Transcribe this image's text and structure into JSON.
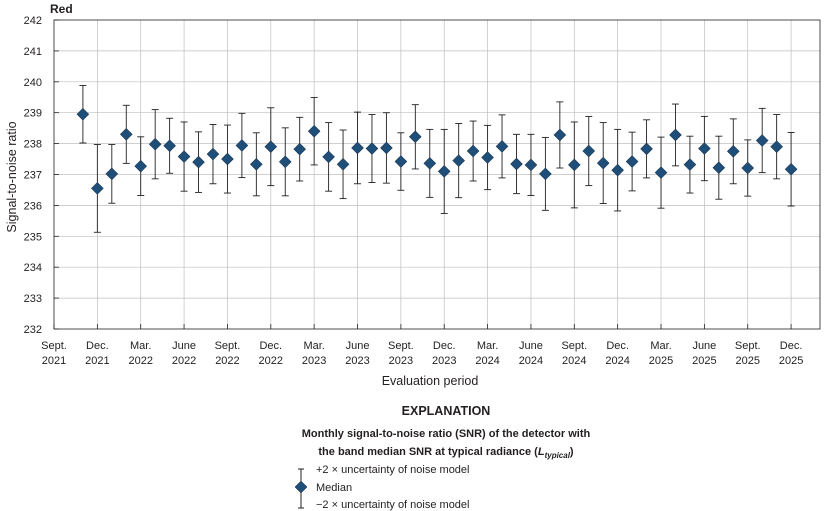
{
  "chart_data": {
    "type": "scatter",
    "panel_label": "Red",
    "xlabel": "Evaluation period",
    "ylabel": "Signal-to-noise ratio",
    "ylim": [
      232,
      242
    ],
    "yticks": [
      232,
      233,
      234,
      235,
      236,
      237,
      238,
      239,
      240,
      241,
      242
    ],
    "x_start": "2021-09",
    "x_end": "2026-02",
    "x_tick_months": [
      "2021-09",
      "2021-12",
      "2022-03",
      "2022-06",
      "2022-09",
      "2022-12",
      "2023-03",
      "2023-06",
      "2023-09",
      "2023-12",
      "2024-03",
      "2024-06",
      "2024-09",
      "2024-12",
      "2025-03",
      "2025-06",
      "2025-09",
      "2025-12"
    ],
    "x_tick_labels": [
      [
        "Sept.",
        "2021"
      ],
      [
        "Dec.",
        "2021"
      ],
      [
        "Mar.",
        "2022"
      ],
      [
        "June",
        "2022"
      ],
      [
        "Sept.",
        "2022"
      ],
      [
        "Dec.",
        "2022"
      ],
      [
        "Mar.",
        "2023"
      ],
      [
        "June",
        "2023"
      ],
      [
        "Sept.",
        "2023"
      ],
      [
        "Dec.",
        "2023"
      ],
      [
        "Mar.",
        "2024"
      ],
      [
        "June",
        "2024"
      ],
      [
        "Sept.",
        "2024"
      ],
      [
        "Dec.",
        "2024"
      ],
      [
        "Mar.",
        "2025"
      ],
      [
        "June",
        "2025"
      ],
      [
        "Sept.",
        "2025"
      ],
      [
        "Dec.",
        "2025"
      ]
    ],
    "grid": true,
    "marker_color": "#1f4e79",
    "series": [
      {
        "name": "Median",
        "points": [
          {
            "x": "2021-11-01",
            "y": 238.95,
            "upper": 239.88,
            "lower": 238.02
          },
          {
            "x": "2021-12-01",
            "y": 236.55,
            "upper": 237.97,
            "lower": 235.13
          },
          {
            "x": "2022-01-01",
            "y": 237.02,
            "upper": 237.97,
            "lower": 236.07
          },
          {
            "x": "2022-02-01",
            "y": 238.3,
            "upper": 239.24,
            "lower": 237.36
          },
          {
            "x": "2022-03-01",
            "y": 237.27,
            "upper": 238.22,
            "lower": 236.32
          },
          {
            "x": "2022-04-01",
            "y": 237.98,
            "upper": 239.1,
            "lower": 236.86
          },
          {
            "x": "2022-05-01",
            "y": 237.93,
            "upper": 238.82,
            "lower": 237.04
          },
          {
            "x": "2022-06-01",
            "y": 237.58,
            "upper": 238.7,
            "lower": 236.46
          },
          {
            "x": "2022-07-01",
            "y": 237.4,
            "upper": 238.38,
            "lower": 236.42
          },
          {
            "x": "2022-08-01",
            "y": 237.66,
            "upper": 238.62,
            "lower": 236.7
          },
          {
            "x": "2022-09-01",
            "y": 237.5,
            "upper": 238.6,
            "lower": 236.4
          },
          {
            "x": "2022-10-01",
            "y": 237.94,
            "upper": 238.98,
            "lower": 236.9
          },
          {
            "x": "2022-11-01",
            "y": 237.33,
            "upper": 238.35,
            "lower": 236.31
          },
          {
            "x": "2022-12-01",
            "y": 237.9,
            "upper": 239.16,
            "lower": 236.64
          },
          {
            "x": "2023-01-01",
            "y": 237.41,
            "upper": 238.51,
            "lower": 236.31
          },
          {
            "x": "2023-02-01",
            "y": 237.82,
            "upper": 238.85,
            "lower": 236.79
          },
          {
            "x": "2023-03-01",
            "y": 238.4,
            "upper": 239.49,
            "lower": 237.31
          },
          {
            "x": "2023-04-01",
            "y": 237.57,
            "upper": 238.68,
            "lower": 236.46
          },
          {
            "x": "2023-05-01",
            "y": 237.33,
            "upper": 238.44,
            "lower": 236.22
          },
          {
            "x": "2023-06-01",
            "y": 237.86,
            "upper": 239.02,
            "lower": 236.7
          },
          {
            "x": "2023-07-01",
            "y": 237.84,
            "upper": 238.94,
            "lower": 236.74
          },
          {
            "x": "2023-08-01",
            "y": 237.86,
            "upper": 239.0,
            "lower": 236.72
          },
          {
            "x": "2023-09-01",
            "y": 237.42,
            "upper": 238.35,
            "lower": 236.49
          },
          {
            "x": "2023-10-01",
            "y": 238.22,
            "upper": 239.26,
            "lower": 237.18
          },
          {
            "x": "2023-11-01",
            "y": 237.36,
            "upper": 238.46,
            "lower": 236.26
          },
          {
            "x": "2023-12-01",
            "y": 237.1,
            "upper": 238.46,
            "lower": 235.74
          },
          {
            "x": "2024-01-01",
            "y": 237.45,
            "upper": 238.65,
            "lower": 236.25
          },
          {
            "x": "2024-02-01",
            "y": 237.76,
            "upper": 238.73,
            "lower": 236.79
          },
          {
            "x": "2024-03-01",
            "y": 237.55,
            "upper": 238.59,
            "lower": 236.51
          },
          {
            "x": "2024-04-01",
            "y": 237.91,
            "upper": 238.93,
            "lower": 236.89
          },
          {
            "x": "2024-05-01",
            "y": 237.34,
            "upper": 238.3,
            "lower": 236.38
          },
          {
            "x": "2024-06-01",
            "y": 237.31,
            "upper": 238.3,
            "lower": 236.32
          },
          {
            "x": "2024-07-01",
            "y": 237.02,
            "upper": 238.2,
            "lower": 235.84
          },
          {
            "x": "2024-08-01",
            "y": 238.28,
            "upper": 239.35,
            "lower": 237.21
          },
          {
            "x": "2024-09-01",
            "y": 237.31,
            "upper": 238.7,
            "lower": 235.92
          },
          {
            "x": "2024-10-01",
            "y": 237.76,
            "upper": 238.88,
            "lower": 236.64
          },
          {
            "x": "2024-11-01",
            "y": 237.37,
            "upper": 238.68,
            "lower": 236.06
          },
          {
            "x": "2024-12-01",
            "y": 237.14,
            "upper": 238.46,
            "lower": 235.82
          },
          {
            "x": "2025-01-01",
            "y": 237.42,
            "upper": 238.37,
            "lower": 236.47
          },
          {
            "x": "2025-02-01",
            "y": 237.83,
            "upper": 238.77,
            "lower": 236.89
          },
          {
            "x": "2025-03-01",
            "y": 237.06,
            "upper": 238.21,
            "lower": 235.91
          },
          {
            "x": "2025-04-01",
            "y": 238.28,
            "upper": 239.28,
            "lower": 237.28
          },
          {
            "x": "2025-05-01",
            "y": 237.32,
            "upper": 238.24,
            "lower": 236.4
          },
          {
            "x": "2025-06-01",
            "y": 237.84,
            "upper": 238.88,
            "lower": 236.8
          },
          {
            "x": "2025-07-01",
            "y": 237.22,
            "upper": 238.24,
            "lower": 236.2
          },
          {
            "x": "2025-08-01",
            "y": 237.75,
            "upper": 238.8,
            "lower": 236.7
          },
          {
            "x": "2025-09-01",
            "y": 237.21,
            "upper": 238.12,
            "lower": 236.3
          },
          {
            "x": "2025-10-01",
            "y": 238.1,
            "upper": 239.14,
            "lower": 237.06
          },
          {
            "x": "2025-11-01",
            "y": 237.9,
            "upper": 238.94,
            "lower": 236.86
          },
          {
            "x": "2025-12-01",
            "y": 237.17,
            "upper": 238.36,
            "lower": 235.98
          }
        ]
      }
    ]
  },
  "explanation": {
    "title": "EXPLANATION",
    "caption_line1": "Monthly signal-to-noise ratio (SNR) of the detector with",
    "caption_line2_prefix": "the band median SNR at typical radiance (",
    "caption_symbol": "L",
    "caption_subscript": "typical",
    "caption_line2_suffix": ")",
    "legend_upper": "+2 × uncertainty of noise model",
    "legend_median": "Median",
    "legend_lower": "−2 × uncertainty of noise model"
  }
}
